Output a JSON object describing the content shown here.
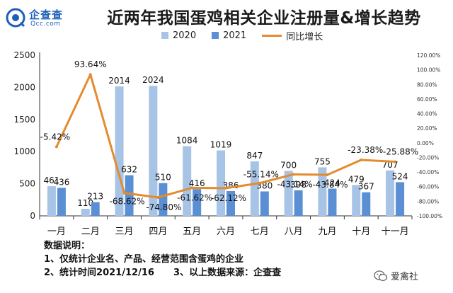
{
  "logo": {
    "name_cn": "企查查",
    "name_en": "Qcc.com"
  },
  "colors": {
    "series2020": "#a7c3e6",
    "series2021": "#5b8fd4",
    "growth": "#e38b2e",
    "grid": "#e3e3e3",
    "axis": "#333333"
  },
  "chart_data": {
    "type": "bar",
    "title": "近两年我国蛋鸡相关企业注册量&增长趋势",
    "categories": [
      "一月",
      "二月",
      "三月",
      "四月",
      "五月",
      "六月",
      "七月",
      "八月",
      "九月",
      "十月",
      "十一月"
    ],
    "series": [
      {
        "name": "2020",
        "values": [
          461,
          110,
          2014,
          2024,
          1084,
          1019,
          847,
          700,
          755,
          479,
          707
        ],
        "labels": [
          "461",
          "110",
          "2014",
          "2024",
          "1084",
          "1019",
          "847",
          "700",
          "755",
          "479",
          "707"
        ]
      },
      {
        "name": "2021",
        "values": [
          436,
          213,
          632,
          510,
          416,
          386,
          380,
          398,
          424,
          367,
          524
        ],
        "labels": [
          "436",
          "213",
          "632",
          "510",
          "416",
          "386",
          "380",
          "398",
          "424",
          "367",
          "524"
        ]
      },
      {
        "name": "同比增长",
        "type": "line",
        "axis": "right",
        "values": [
          -5.42,
          93.64,
          -68.62,
          -74.8,
          -61.62,
          -62.12,
          -55.14,
          -43.14,
          -43.84,
          -23.38,
          -25.88
        ],
        "labels": [
          "-5.42%",
          "93.64%",
          "-68.62%",
          "-74.80%",
          "-61.62%",
          "-62.12%",
          "-55.14%",
          "-43.14%",
          "-43.84%",
          "-23.38%",
          "-25.88%"
        ]
      }
    ],
    "ylim": [
      0,
      2500
    ],
    "yticks": [
      "0",
      "500",
      "1000",
      "1500",
      "2000",
      "2500"
    ],
    "y2lim": [
      -100,
      120
    ],
    "y2ticks": [
      "-100.00%",
      "-80.00%",
      "-60.00%",
      "-40.00%",
      "-20.00%",
      "0.00%",
      "20.00%",
      "40.00%",
      "60.00%",
      "80.00%",
      "100.00%",
      "120.00%"
    ],
    "legend_position": "top",
    "grid": false
  },
  "notes": {
    "heading": "数据说明：",
    "line1": "1、仅统计企业名、产品、经营范围含蛋鸡的企业",
    "line2": "2、统计时间2021/12/16      3、以上数据来源：企查查"
  },
  "watermark": {
    "text": "爱禽社",
    "icon": "wechat-icon"
  }
}
